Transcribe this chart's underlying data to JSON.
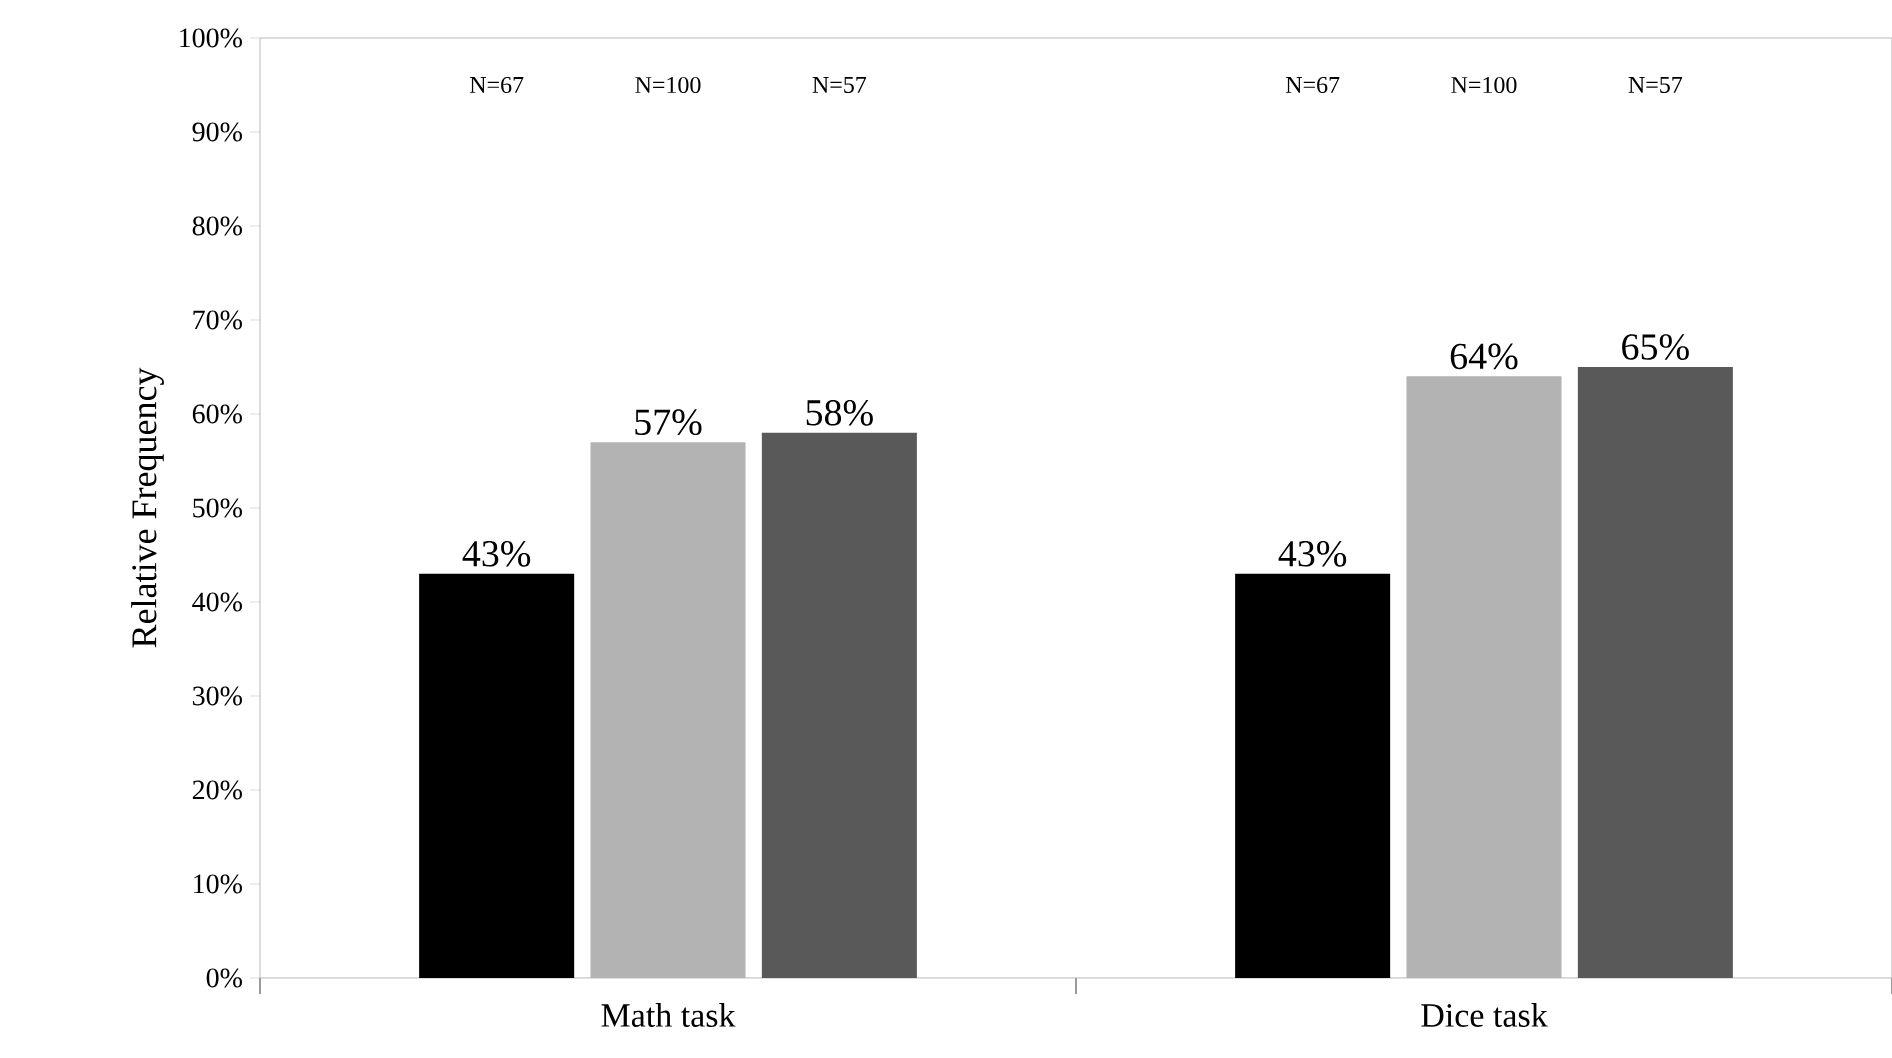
{
  "chart_data": {
    "type": "bar",
    "ylabel": "Relative Frequency",
    "categories": [
      "Math task",
      "Dice task"
    ],
    "series": [
      {
        "color": "#000000",
        "values": [
          43,
          43
        ],
        "value_labels": [
          "43%",
          "43%"
        ]
      },
      {
        "color": "#b3b3b3",
        "values": [
          57,
          64
        ],
        "value_labels": [
          "57%",
          "64%"
        ]
      },
      {
        "color": "#595959",
        "values": [
          58,
          65
        ],
        "value_labels": [
          "58%",
          "65%"
        ]
      }
    ],
    "ylim": [
      0,
      100
    ],
    "yticks": [
      {
        "value": 0,
        "label": "0%"
      },
      {
        "value": 10,
        "label": "10%"
      },
      {
        "value": 20,
        "label": "20%"
      },
      {
        "value": 30,
        "label": "30%"
      },
      {
        "value": 40,
        "label": "40%"
      },
      {
        "value": 50,
        "label": "50%"
      },
      {
        "value": 60,
        "label": "60%"
      },
      {
        "value": 70,
        "label": "70%"
      },
      {
        "value": 80,
        "label": "80%"
      },
      {
        "value": 90,
        "label": "90%"
      },
      {
        "value": 100,
        "label": "100%"
      }
    ],
    "annotations": [
      "N=67",
      "N=100",
      "N=57",
      "N=67",
      "N=100",
      "N=57"
    ],
    "grid": false
  }
}
